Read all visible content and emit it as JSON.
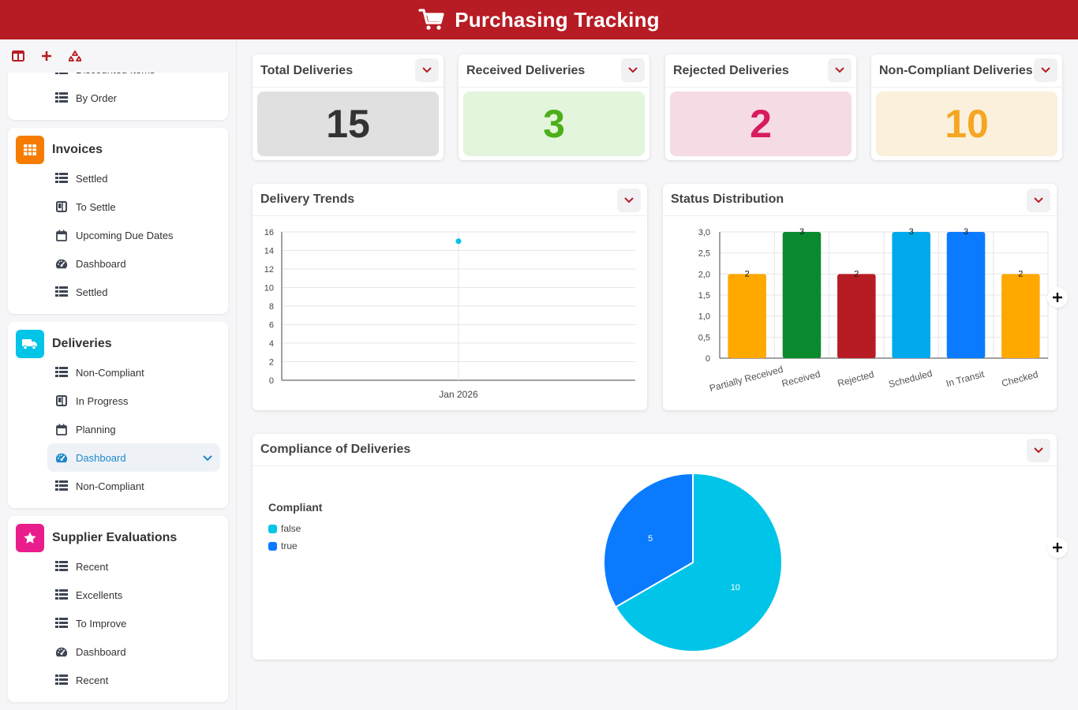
{
  "header": {
    "title": "Purchasing Tracking",
    "icon": "cart-icon"
  },
  "colors": {
    "brand": "#b71c24",
    "orange": "#f57c00",
    "cyan": "#00c4e8",
    "magenta": "#e91e8c"
  },
  "sidebar": {
    "toolbar": [
      "layout-icon",
      "plus-icon",
      "recycle-icon"
    ],
    "partial_section": {
      "clipped_item_label": "Discounted Items",
      "items": [
        {
          "label": "By Order",
          "icon": "table-icon"
        }
      ]
    },
    "sections": [
      {
        "title": "Invoices",
        "icon": "grid-icon",
        "color": "#f57c00",
        "items": [
          {
            "label": "Settled",
            "icon": "table-icon"
          },
          {
            "label": "To Settle",
            "icon": "kanban-icon"
          },
          {
            "label": "Upcoming Due Dates",
            "icon": "calendar-icon"
          },
          {
            "label": "Dashboard",
            "icon": "gauge-icon"
          },
          {
            "label": "Settled",
            "icon": "table-icon"
          }
        ]
      },
      {
        "title": "Deliveries",
        "icon": "truck-icon",
        "color": "#00c4e8",
        "items": [
          {
            "label": "Non-Compliant",
            "icon": "table-icon"
          },
          {
            "label": "In Progress",
            "icon": "kanban-icon"
          },
          {
            "label": "Planning",
            "icon": "calendar-icon"
          },
          {
            "label": "Dashboard",
            "icon": "gauge-icon",
            "active": true
          },
          {
            "label": "Non-Compliant",
            "icon": "table-icon"
          }
        ]
      },
      {
        "title": "Supplier Evaluations",
        "icon": "star-icon",
        "color": "#e91e8c",
        "items": [
          {
            "label": "Recent",
            "icon": "table-icon"
          },
          {
            "label": "Excellents",
            "icon": "table-icon"
          },
          {
            "label": "To Improve",
            "icon": "table-icon"
          },
          {
            "label": "Dashboard",
            "icon": "gauge-icon"
          },
          {
            "label": "Recent",
            "icon": "table-icon"
          }
        ]
      }
    ]
  },
  "kpis": [
    {
      "label": "Total Deliveries",
      "value": "15",
      "bg": "#e0e0e0",
      "color": "#333333"
    },
    {
      "label": "Received Deliveries",
      "value": "3",
      "bg": "#e3f5dc",
      "color": "#4caf1a"
    },
    {
      "label": "Rejected Deliveries",
      "value": "2",
      "bg": "#f5dbe4",
      "color": "#d81b60"
    },
    {
      "label": "Non-Compliant Deliveries",
      "value": "10",
      "bg": "#fbf0dc",
      "color": "#f5a623"
    }
  ],
  "panels": {
    "trends": "Delivery Trends",
    "status": "Status Distribution",
    "compliance": "Compliance of Deliveries"
  },
  "chart_data": [
    {
      "type": "line",
      "title": "Delivery Trends",
      "x": [
        "Jan 2026"
      ],
      "series": [
        {
          "values": [
            15
          ],
          "color": "#00c4e8"
        }
      ],
      "ylim": [
        0,
        16
      ],
      "yticks": [
        0,
        2,
        4,
        6,
        8,
        10,
        12,
        14,
        16
      ],
      "grid": true
    },
    {
      "type": "bar",
      "title": "Status Distribution",
      "categories": [
        "Partially Received",
        "Received",
        "Rejected",
        "Scheduled",
        "In Transit",
        "Checked"
      ],
      "values": [
        2,
        3,
        2,
        3,
        3,
        2
      ],
      "colors": [
        "#ffa800",
        "#0a8a2e",
        "#b71c24",
        "#00a8ec",
        "#0a7bff",
        "#ffa800"
      ],
      "ylim": [
        0,
        3
      ],
      "yticks": [
        "0",
        "0,5",
        "1,0",
        "1,5",
        "2,0",
        "2,5",
        "3,0"
      ],
      "grid": true
    },
    {
      "type": "pie",
      "title": "Compliance of Deliveries",
      "legend_title": "Compliant",
      "legend": "left",
      "slices": [
        {
          "label": "false",
          "value": 10,
          "color": "#00c4e8"
        },
        {
          "label": "true",
          "value": 5,
          "color": "#0a7bff"
        }
      ]
    }
  ]
}
